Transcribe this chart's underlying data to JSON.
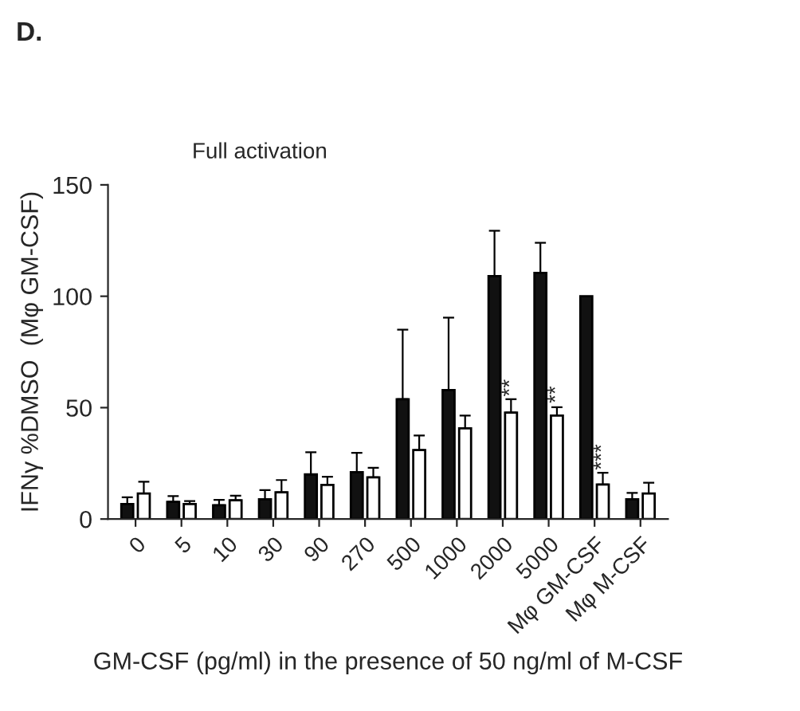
{
  "chart_data": {
    "type": "bar",
    "title": "Full activation",
    "ylabel": "IFNγ %DMSO  (Mφ GM-CSF)",
    "xlabel": "GM-CSF (pg/ml) in the presence of 50 ng/ml of M-CSF",
    "categories": [
      "0",
      "5",
      "10",
      "30",
      "90",
      "270",
      "500",
      "1000",
      "2000",
      "5000",
      "Mφ GM-CSF",
      "Mφ M-CSF"
    ],
    "series": [
      {
        "color": "#111111",
        "values": [
          6.7,
          7.7,
          6.2,
          8.9,
          20,
          21,
          53.8,
          57.9,
          109,
          110.5,
          100,
          8.9
        ],
        "errors": [
          [
            6.7,
            9.8
          ],
          [
            7.7,
            10.3
          ],
          [
            6.2,
            8.6
          ],
          [
            8.9,
            13
          ],
          [
            20,
            30
          ],
          [
            21,
            29.7
          ],
          [
            53.8,
            85
          ],
          [
            57.9,
            90.4
          ],
          [
            109,
            129.4
          ],
          [
            110.5,
            124
          ],
          null,
          [
            8.9,
            11.7
          ]
        ]
      },
      {
        "color": "#ffffff",
        "values": [
          11.5,
          6.7,
          8.4,
          12,
          15.3,
          18.7,
          31,
          40.7,
          47.8,
          46.4,
          15.5,
          11.5
        ],
        "errors": [
          [
            11.5,
            16.7
          ],
          [
            6.7,
            8.1
          ],
          [
            8.4,
            10.5
          ],
          [
            12,
            17.5
          ],
          [
            15.3,
            19
          ],
          [
            18.7,
            23
          ],
          [
            31,
            37.5
          ],
          [
            40.7,
            46.4
          ],
          [
            47.8,
            53.8
          ],
          [
            46.4,
            50.2
          ],
          [
            15.5,
            20.8
          ],
          [
            11.5,
            16.3
          ]
        ]
      }
    ],
    "ylim": [
      0,
      150
    ],
    "yticks": [
      0,
      50,
      100,
      150
    ],
    "grid": false,
    "annotations": [
      "D.",
      {
        "text": "**",
        "x": "2000",
        "y": 55
      },
      {
        "text": "**",
        "x": "5000",
        "y": 52
      },
      {
        "text": "***",
        "x": "Mφ GM-CSF",
        "y": 22
      }
    ]
  }
}
